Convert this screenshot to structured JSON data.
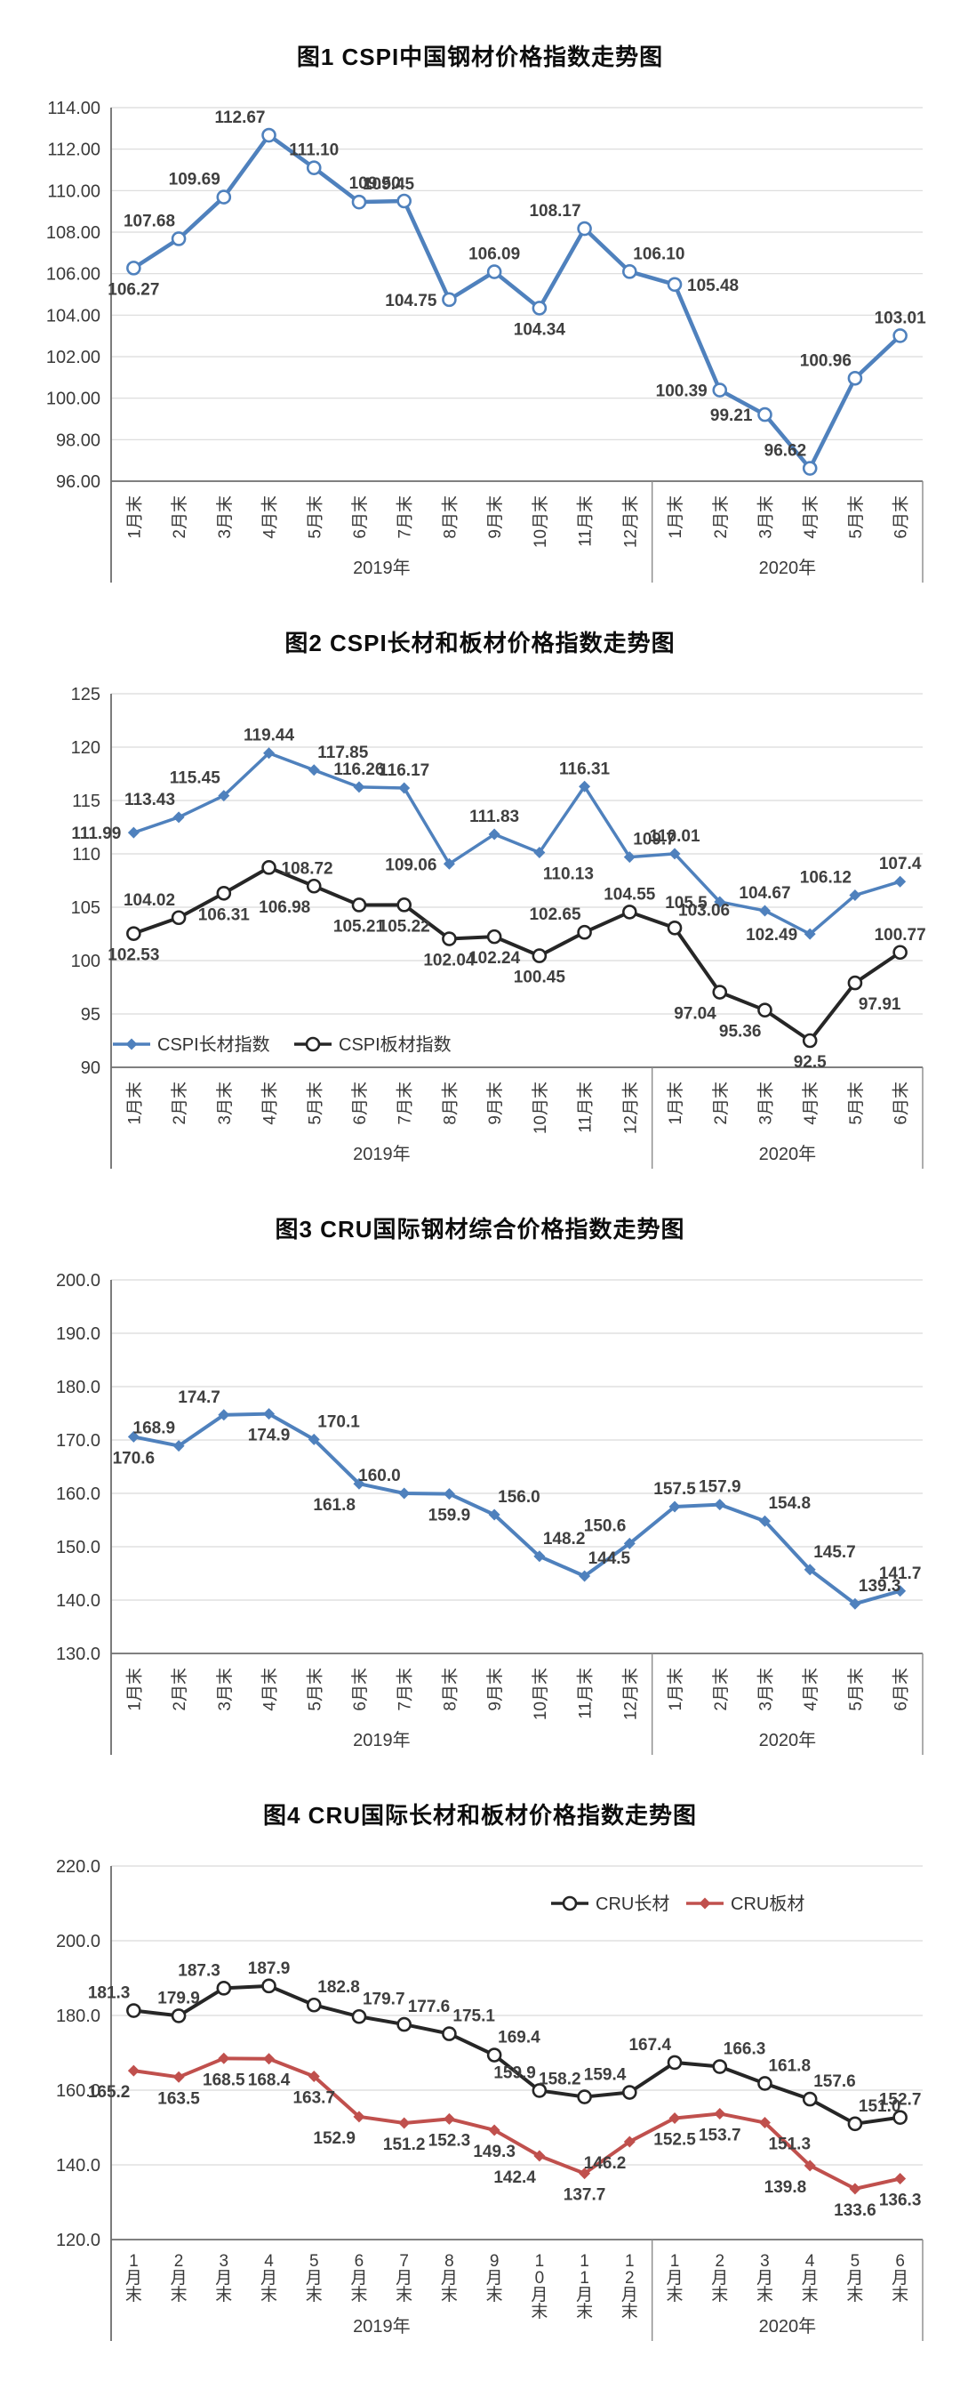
{
  "page": {
    "background": "#ffffff",
    "text_color": "#3a3a3a",
    "grid_color": "#d9d9d9",
    "axis_color": "#6e6e6e"
  },
  "chart_data": [
    {
      "type": "line",
      "title": "图1  CSPI中国钢材价格指数走势图",
      "ylim": [
        96,
        114
      ],
      "ytick_step": 2,
      "ytick_decimals": 2,
      "grid": true,
      "legend_position": "none",
      "xlabel_style": "rotated",
      "categories": [
        "1月末",
        "2月末",
        "3月末",
        "4月末",
        "5月末",
        "6月末",
        "7月末",
        "8月末",
        "9月末",
        "10月末",
        "11月末",
        "12月末",
        "1月末",
        "2月末",
        "3月末",
        "4月末",
        "5月末",
        "6月末"
      ],
      "year_groups": [
        {
          "label": "2019年",
          "span": 12
        },
        {
          "label": "2020年",
          "span": 6
        }
      ],
      "series": [
        {
          "name": "",
          "color": "#4f81bd",
          "marker": "circle-open",
          "line_width": 4.5,
          "values": [
            "106.27",
            "107.68",
            "109.69",
            "112.67",
            "111.10",
            "109.45",
            "109.50",
            "104.75",
            "106.09",
            "104.34",
            "108.17",
            "106.10",
            "105.48",
            "100.39",
            "99.21",
            "96.62",
            "100.96",
            "103.01"
          ],
          "label_pos": [
            "b",
            "al",
            "al",
            "al",
            "a",
            "ar",
            "al",
            "l",
            "a",
            "b",
            "al",
            "ar",
            "r",
            "l",
            "l",
            "al",
            "al",
            "a"
          ]
        }
      ]
    },
    {
      "type": "line",
      "title": "图2  CSPI长材和板材价格指数走势图",
      "ylim": [
        90,
        125
      ],
      "ytick_step": 5,
      "ytick_decimals": 0,
      "grid": true,
      "legend_position": "bottom-left",
      "xlabel_style": "rotated",
      "categories": [
        "1月末",
        "2月末",
        "3月末",
        "4月末",
        "5月末",
        "6月末",
        "7月末",
        "8月末",
        "9月末",
        "10月末",
        "11月末",
        "12月末",
        "1月末",
        "2月末",
        "3月末",
        "4月末",
        "5月末",
        "6月末"
      ],
      "year_groups": [
        {
          "label": "2019年",
          "span": 12
        },
        {
          "label": "2020年",
          "span": 6
        }
      ],
      "series": [
        {
          "name": "CSPI长材指数",
          "color": "#4f81bd",
          "marker": "diamond-filled",
          "line_width": 3.5,
          "values": [
            "111.99",
            "113.43",
            "115.45",
            "119.44",
            "117.85",
            "116.26",
            "116.17",
            "109.06",
            "111.83",
            "110.13",
            "116.31",
            "109.7",
            "110.01",
            "105.5",
            "104.67",
            "102.49",
            "106.12",
            "107.4"
          ],
          "label_pos": [
            "l",
            "al",
            "al",
            "a",
            "ar",
            "a",
            "a",
            "l",
            "a",
            "br",
            "a",
            "ar",
            "a",
            "l",
            "a",
            "l",
            "al",
            "a"
          ]
        },
        {
          "name": "CSPI板材指数",
          "color": "#262626",
          "marker": "circle-open",
          "line_width": 4,
          "values": [
            "102.53",
            "104.02",
            "106.31",
            "108.72",
            "106.98",
            "105.21",
            "105.22",
            "102.04",
            "102.24",
            "100.45",
            "102.65",
            "104.55",
            "103.06",
            "97.04",
            "95.36",
            "92.5",
            "97.91",
            "100.77"
          ],
          "label_pos": [
            "b",
            "al",
            "b",
            "r",
            "bl",
            "b",
            "b",
            "b",
            "b",
            "b",
            "al",
            "a",
            "ar",
            "bl",
            "bl",
            "b",
            "br",
            "a"
          ]
        }
      ]
    },
    {
      "type": "line",
      "title": "图3  CRU国际钢材综合价格指数走势图",
      "ylim": [
        130,
        200
      ],
      "ytick_step": 10,
      "ytick_decimals": 1,
      "grid": true,
      "legend_position": "none",
      "xlabel_style": "rotated",
      "categories": [
        "1月末",
        "2月末",
        "3月末",
        "4月末",
        "5月末",
        "6月末",
        "7月末",
        "8月末",
        "9月末",
        "10月末",
        "11月末",
        "12月末",
        "1月末",
        "2月末",
        "3月末",
        "4月末",
        "5月末",
        "6月末"
      ],
      "year_groups": [
        {
          "label": "2019年",
          "span": 12
        },
        {
          "label": "2020年",
          "span": 6
        }
      ],
      "series": [
        {
          "name": "",
          "color": "#4f81bd",
          "marker": "diamond-filled",
          "line_width": 4,
          "values": [
            "170.6",
            "168.9",
            "174.7",
            "174.9",
            "170.1",
            "161.8",
            "160.0",
            "159.9",
            "156.0",
            "148.2",
            "144.5",
            "150.6",
            "157.5",
            "157.9",
            "154.8",
            "145.7",
            "139.3",
            "141.7"
          ],
          "label_pos": [
            "b",
            "al",
            "al",
            "b",
            "ar",
            "bl",
            "al",
            "b",
            "ar",
            "ar",
            "ar",
            "al",
            "a",
            "a",
            "ar",
            "ar",
            "ar",
            "a"
          ]
        }
      ]
    },
    {
      "type": "line",
      "title": "图4  CRU国际长材和板材价格指数走势图",
      "ylim": [
        120,
        220
      ],
      "ytick_step": 20,
      "ytick_decimals": 1,
      "grid": true,
      "legend_position": "top-right",
      "xlabel_style": "stacked",
      "categories": [
        "1月末",
        "2月末",
        "3月末",
        "4月末",
        "5月末",
        "6月末",
        "7月末",
        "8月末",
        "9月末",
        "10月末",
        "11月末",
        "12月末",
        "1月末",
        "2月末",
        "3月末",
        "4月末",
        "5月末",
        "6月末"
      ],
      "year_groups": [
        {
          "label": "2019年",
          "span": 12
        },
        {
          "label": "2020年",
          "span": 6
        }
      ],
      "series": [
        {
          "name": "CRU长材",
          "color": "#262626",
          "marker": "circle-open",
          "line_width": 4,
          "values": [
            "181.3",
            "179.9",
            "187.3",
            "187.9",
            "182.8",
            "179.7",
            "177.6",
            "175.1",
            "169.4",
            "159.9",
            "158.2",
            "159.4",
            "167.4",
            "166.3",
            "161.8",
            "157.6",
            "151.0",
            "152.7"
          ],
          "label_pos": [
            "al",
            "a",
            "al",
            "a",
            "ar",
            "ar",
            "ar",
            "ar",
            "ar",
            "al",
            "al",
            "al",
            "al",
            "ar",
            "ar",
            "ar",
            "ar",
            "a"
          ]
        },
        {
          "name": "CRU板材",
          "color": "#c0504d",
          "marker": "diamond-filled",
          "line_width": 4,
          "values": [
            "165.2",
            "163.5",
            "168.5",
            "168.4",
            "163.7",
            "152.9",
            "151.2",
            "152.3",
            "149.3",
            "142.4",
            "137.7",
            "146.2",
            "152.5",
            "153.7",
            "151.3",
            "139.8",
            "133.6",
            "136.3"
          ],
          "label_pos": [
            "bl",
            "b",
            "b",
            "b",
            "b",
            "bl",
            "b",
            "b",
            "b",
            "bl",
            "b",
            "bl",
            "b",
            "b",
            "br",
            "bl",
            "b",
            "b"
          ]
        }
      ]
    }
  ]
}
